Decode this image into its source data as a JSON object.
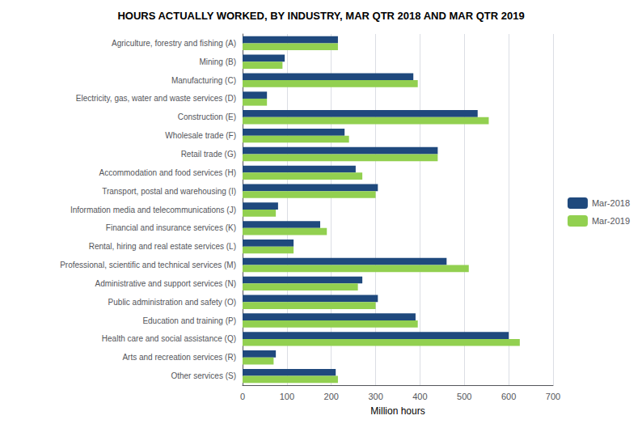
{
  "chart_data": {
    "type": "bar",
    "orientation": "horizontal",
    "title": "HOURS ACTUALLY WORKED, BY INDUSTRY, MAR QTR 2018 AND MAR QTR 2019",
    "xlabel": "Million hours",
    "categories": [
      "Agriculture, forestry and fishing (A)",
      "Mining (B)",
      "Manufacturing (C)",
      "Electricity, gas, water and waste services (D)",
      "Construction (E)",
      "Wholesale trade (F)",
      "Retail trade (G)",
      "Accommodation and food services (H)",
      "Transport, postal and warehousing (I)",
      "Information media and telecommunications (J)",
      "Financial and insurance services (K)",
      "Rental, hiring and real estate services (L)",
      "Professional, scientific and technical services (M)",
      "Administrative and support services (N)",
      "Public administration and safety (O)",
      "Education and training (P)",
      "Health care and social assistance (Q)",
      "Arts and recreation services (R)",
      "Other services (S)"
    ],
    "series": [
      {
        "name": "Mar-2018",
        "color": "#1F497D",
        "values": [
          215,
          95,
          385,
          55,
          530,
          230,
          440,
          255,
          305,
          80,
          175,
          115,
          460,
          270,
          305,
          390,
          600,
          75,
          210
        ]
      },
      {
        "name": "Mar-2019",
        "color": "#92D050",
        "values": [
          215,
          90,
          395,
          55,
          555,
          240,
          440,
          270,
          300,
          75,
          190,
          115,
          510,
          260,
          300,
          395,
          625,
          70,
          215
        ]
      }
    ],
    "xlim": [
      0,
      700
    ],
    "xticks": [
      0,
      100,
      200,
      300,
      400,
      500,
      600,
      700
    ],
    "grid": true,
    "legend": "right"
  }
}
